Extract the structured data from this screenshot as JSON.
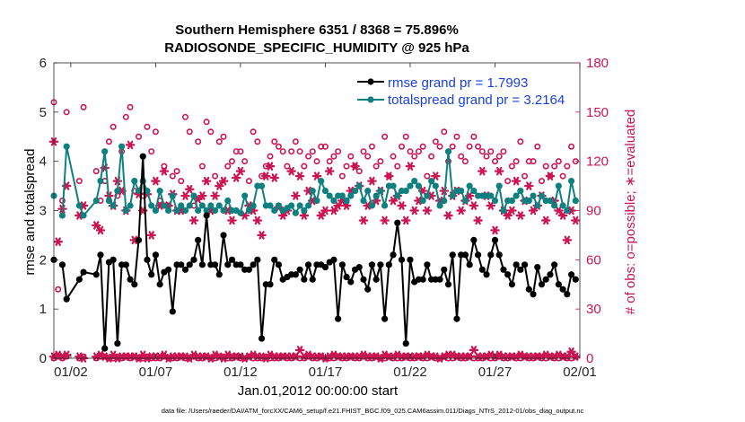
{
  "chart_data": {
    "type": "line",
    "title_line1": "Southern Hemisphere 6351 / 8368 = 75.896%",
    "title_line2": "RADIOSONDE_SPECIFIC_HUMIDITY @ 925 hPa",
    "xlabel": "Jan.01,2012 00:00:00 start",
    "ylabel_left": "rmse and totalspread",
    "ylabel_right": "# of obs: o=possible; ∗=evaluated",
    "footnote": "data file: /Users/raeder/DAI/ATM_forcXX/CAM6_setup/f.e21.FHIST_BGC.f09_025.CAM6assim.011/Diags_NTrS_2012-01/obs_diag_output.nc",
    "xlim": [
      0,
      31
    ],
    "ylim_left": [
      0,
      6
    ],
    "ylim_right": [
      0,
      180
    ],
    "x_ticks": [
      1,
      6,
      11,
      16,
      21,
      26,
      31
    ],
    "x_tick_labels": [
      "01/02",
      "01/07",
      "01/12",
      "01/17",
      "01/22",
      "01/27",
      "02/01"
    ],
    "y_ticks_left": [
      0,
      1,
      2,
      3,
      4,
      5,
      6
    ],
    "y_ticks_right": [
      0,
      30,
      60,
      90,
      120,
      150,
      180
    ],
    "colors": {
      "rmse": "#000000",
      "spread": "#0f8080",
      "obs": "#cc1550",
      "legend_text": "#1a3fe0"
    },
    "legend": [
      "rmse grand pr = 1.7993",
      "totalspread grand pr = 3.2164"
    ],
    "x": [
      0.0,
      0.25,
      0.5,
      0.75,
      1.5,
      1.75,
      2.5,
      2.75,
      3.0,
      3.25,
      3.5,
      3.75,
      4.0,
      4.25,
      4.5,
      4.75,
      5.0,
      5.25,
      5.5,
      5.75,
      6.0,
      6.25,
      6.5,
      6.75,
      7.0,
      7.25,
      7.5,
      7.75,
      8.0,
      8.25,
      8.5,
      8.75,
      9.0,
      9.25,
      9.5,
      9.75,
      10.0,
      10.25,
      10.5,
      10.75,
      11.0,
      11.25,
      11.5,
      11.75,
      12.0,
      12.25,
      12.5,
      12.75,
      13.0,
      13.25,
      13.5,
      13.75,
      14.0,
      14.25,
      14.5,
      14.75,
      15.0,
      15.25,
      15.5,
      15.75,
      16.0,
      16.25,
      16.5,
      16.75,
      17.0,
      17.25,
      17.5,
      17.75,
      18.0,
      18.25,
      18.5,
      18.75,
      19.0,
      19.25,
      19.5,
      19.75,
      20.0,
      20.25,
      20.5,
      20.75,
      21.0,
      21.25,
      21.5,
      21.75,
      22.0,
      22.25,
      22.5,
      22.75,
      23.0,
      23.25,
      23.5,
      23.75,
      24.0,
      24.25,
      24.5,
      24.75,
      25.0,
      25.25,
      25.5,
      25.75,
      26.0,
      26.25,
      26.5,
      26.75,
      27.0,
      27.25,
      27.5,
      27.75,
      28.0,
      28.25,
      28.5,
      28.75,
      29.0,
      29.25,
      29.5,
      29.75,
      30.0,
      30.25,
      30.5,
      30.75
    ],
    "series": [
      {
        "name": "rmse",
        "values": [
          2.0,
          null,
          1.9,
          1.2,
          1.6,
          1.75,
          1.7,
          2.1,
          0.2,
          1.95,
          2.0,
          0.3,
          1.9,
          1.9,
          1.6,
          1.5,
          2.4,
          4.1,
          2.0,
          1.7,
          2.1,
          1.5,
          1.75,
          1.8,
          0.95,
          1.9,
          1.9,
          1.8,
          1.9,
          2.0,
          2.4,
          1.9,
          2.9,
          1.9,
          1.9,
          1.7,
          2.5,
          1.9,
          2.0,
          1.9,
          1.9,
          1.8,
          1.8,
          1.9,
          2.0,
          0.4,
          1.5,
          1.5,
          2.0,
          1.9,
          1.6,
          1.65,
          1.7,
          1.7,
          1.8,
          1.6,
          1.9,
          1.6,
          1.9,
          1.9,
          1.85,
          1.95,
          2.0,
          0.8,
          1.9,
          1.65,
          1.55,
          1.8,
          1.85,
          1.6,
          1.4,
          1.9,
          1.6,
          1.9,
          0.8,
          1.9,
          2.1,
          2.75,
          2.0,
          0.3,
          2.0,
          1.55,
          1.6,
          1.6,
          1.9,
          1.6,
          1.6,
          1.6,
          1.8,
          1.5,
          2.1,
          0.8,
          2.1,
          2.1,
          1.9,
          2.4,
          2.1,
          1.8,
          1.7,
          2.1,
          2.4,
          2.1,
          1.8,
          1.7,
          1.5,
          1.9,
          1.8,
          1.9,
          1.4,
          1.3,
          1.85,
          1.5,
          1.6,
          1.7,
          1.9,
          1.5,
          1.4,
          1.3,
          1.7,
          1.6
        ]
      },
      {
        "name": "totalspread",
        "values": [
          3.3,
          null,
          2.9,
          4.3,
          3.1,
          2.9,
          3.2,
          3.6,
          4.2,
          3.2,
          3.1,
          3.4,
          4.3,
          3.0,
          3.1,
          3.6,
          3.4,
          3.6,
          3.4,
          3.1,
          3.0,
          3.4,
          3.1,
          3.0,
          3.3,
          3.0,
          3.1,
          3.0,
          3.1,
          3.3,
          3.0,
          3.1,
          3.0,
          3.1,
          3.0,
          3.1,
          3.0,
          3.2,
          3.0,
          3.0,
          2.95,
          3.3,
          3.0,
          3.1,
          3.5,
          3.5,
          3.1,
          3.1,
          3.0,
          3.1,
          3.0,
          3.05,
          3.1,
          2.95,
          3.1,
          3.0,
          3.1,
          3.4,
          3.2,
          3.6,
          3.4,
          3.3,
          3.2,
          3.3,
          3.3,
          3.2,
          3.3,
          3.4,
          3.5,
          3.2,
          3.4,
          3.1,
          3.3,
          3.4,
          3.1,
          3.5,
          3.5,
          3.3,
          3.4,
          3.4,
          3.5,
          3.6,
          3.5,
          3.2,
          3.3,
          3.6,
          3.5,
          3.1,
          3.2,
          4.2,
          3.3,
          3.4,
          3.4,
          3.2,
          3.5,
          3.4,
          3.3,
          3.3,
          3.3,
          3.3,
          3.2,
          3.5,
          3.0,
          3.2,
          3.2,
          3.3,
          3.4,
          3.2,
          3.2,
          3.3,
          3.1,
          3.3,
          3.2,
          3.2,
          3.1,
          3.5,
          3.1,
          3.0,
          3.6,
          3.2
        ]
      },
      {
        "name": "obs_possible",
        "values": [
          156,
          42,
          96,
          150,
          108,
          153,
          114,
          96,
          108,
          132,
          141,
          99,
          126,
          147,
          153,
          102,
          135,
          99,
          141,
          126,
          138,
          96,
          117,
          93,
          111,
          114,
          108,
          147,
          138,
          93,
          132,
          117,
          144,
          138,
          111,
          132,
          135,
          117,
          120,
          126,
          126,
          120,
          108,
          138,
          132,
          111,
          117,
          123,
          132,
          129,
          126,
          117,
          126,
          132,
          126,
          117,
          123,
          126,
          120,
          129,
          129,
          120,
          123,
          126,
          111,
          117,
          123,
          117,
          114,
          126,
          123,
          129,
          117,
          120,
          135,
          111,
          123,
          117,
          129,
          135,
          126,
          123,
          126,
          129,
          111,
          123,
          132,
          129,
          138,
          120,
          129,
          135,
          123,
          120,
          129,
          135,
          129,
          126,
          123,
          126,
          120,
          123,
          126,
          108,
          117,
          120,
          132,
          111,
          120,
          120,
          129,
          108,
          117,
          111,
          117,
          120,
          111,
          117,
          129,
          120
        ]
      },
      {
        "name": "obs_evaluated",
        "values": [
          132,
          71,
          91,
          105,
          87,
          93,
          81,
          78,
          116,
          99,
          93,
          108,
          102,
          90,
          130,
          72,
          100,
          90,
          100,
          75,
          108,
          93,
          114,
          93,
          100,
          90,
          90,
          99,
          103,
          84,
          97,
          99,
          108,
          90,
          99,
          105,
          108,
          90,
          84,
          110,
          114,
          87,
          93,
          90,
          84,
          75,
          111,
          117,
          110,
          92,
          87,
          90,
          114,
          99,
          111,
          87,
          102,
          96,
          111,
          87,
          90,
          114,
          90,
          93,
          96,
          93,
          102,
          117,
          105,
          84,
          93,
          108,
          96,
          102,
          84,
          111,
          96,
          99,
          93,
          84,
          117,
          90,
          96,
          102,
          90,
          99,
          111,
          96,
          102,
          87,
          99,
          102,
          90,
          96,
          99,
          93,
          84,
          114,
          99,
          93,
          78,
          114,
          90,
          87,
          90,
          108,
          87,
          96,
          105,
          90,
          93,
          99,
          84,
          111,
          96,
          90,
          87,
          72,
          90,
          84
        ]
      },
      {
        "name": "obs_zero_possible",
        "values": [
          0,
          1,
          0,
          1,
          0,
          1,
          0,
          1,
          1,
          0,
          0,
          1,
          0,
          1,
          0,
          1,
          0,
          0,
          1,
          0,
          0,
          0,
          1,
          0,
          0,
          0,
          1,
          0,
          0,
          1,
          0,
          0,
          1,
          0,
          0,
          1,
          1,
          0,
          0,
          1,
          0,
          0,
          1,
          0,
          0,
          0,
          1,
          0,
          0,
          0,
          1,
          0,
          0,
          1,
          0,
          0,
          1,
          0,
          0,
          1,
          0,
          0,
          0,
          1,
          0,
          0,
          1,
          0,
          0,
          1,
          0,
          0,
          1,
          0,
          0,
          1,
          0,
          0,
          0,
          1,
          0,
          0,
          1,
          0,
          0,
          1,
          0,
          0,
          1,
          0,
          0,
          1,
          0,
          0,
          1,
          0,
          0,
          0,
          1,
          0,
          0,
          1,
          0,
          0,
          1,
          0,
          0,
          1,
          0,
          0,
          1,
          0,
          0,
          1,
          0,
          0,
          1,
          0,
          0,
          1
        ]
      },
      {
        "name": "obs_zero_evaluated",
        "values": [
          1,
          2,
          1,
          2,
          1,
          0,
          1,
          2,
          1,
          0,
          2,
          0,
          1,
          1,
          1,
          1,
          0,
          2,
          0,
          1,
          1,
          1,
          2,
          0,
          1,
          1,
          1,
          1,
          0,
          2,
          1,
          1,
          1,
          0,
          2,
          1,
          0,
          2,
          1,
          1,
          1,
          0,
          1,
          2,
          1,
          1,
          0,
          2,
          1,
          1,
          1,
          1,
          1,
          1,
          5,
          1,
          2,
          1,
          1,
          1,
          0,
          1,
          2,
          1,
          1,
          1,
          1,
          1,
          1,
          2,
          1,
          1,
          1,
          0,
          2,
          1,
          1,
          2,
          1,
          1,
          1,
          1,
          1,
          1,
          2,
          1,
          1,
          0,
          1,
          2,
          2,
          1,
          1,
          1,
          1,
          5,
          1,
          1,
          1,
          2,
          1,
          2,
          1,
          1,
          1,
          1,
          2,
          1,
          1,
          1,
          1,
          1,
          2,
          1,
          1,
          2,
          1,
          1,
          4,
          1
        ]
      }
    ]
  }
}
